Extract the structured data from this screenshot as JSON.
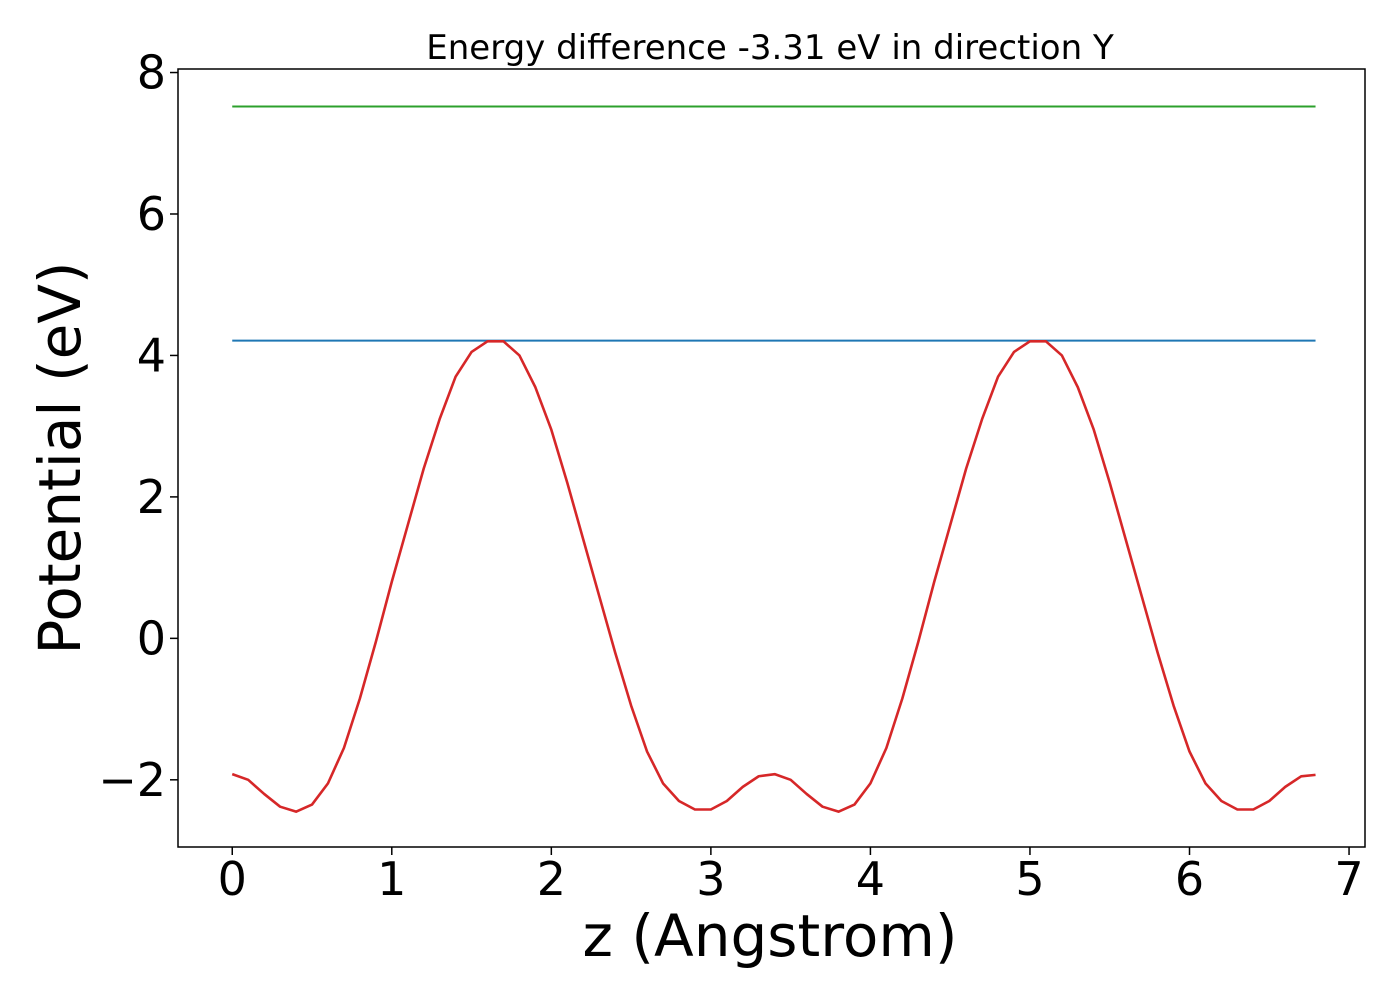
{
  "chart_data": {
    "type": "line",
    "title": "Energy difference -3.31 eV in direction Y",
    "xlabel": "z (Angstrom)",
    "ylabel": "Potential (eV)",
    "xlim": [
      -0.34,
      7.1
    ],
    "ylim": [
      -2.95,
      8.05
    ],
    "xticks": [
      0,
      1,
      2,
      3,
      4,
      5,
      6,
      7
    ],
    "xtick_labels": [
      "0",
      "1",
      "2",
      "3",
      "4",
      "5",
      "6",
      "7"
    ],
    "yticks": [
      -2,
      0,
      2,
      4,
      6,
      8
    ],
    "ytick_labels": [
      "−2",
      "0",
      "2",
      "4",
      "6",
      "8"
    ],
    "grid": false,
    "legend": "none",
    "series": [
      {
        "color": "#2ca02c",
        "x": [
          0,
          6.79
        ],
        "y": [
          7.52,
          7.52
        ]
      },
      {
        "color": "#1f77b4",
        "x": [
          0,
          6.79
        ],
        "y": [
          4.21,
          4.21
        ]
      },
      {
        "color": "#d62728",
        "x": [
          0,
          0.1,
          0.2,
          0.3,
          0.4,
          0.5,
          0.6,
          0.7,
          0.8,
          0.9,
          1.0,
          1.1,
          1.2,
          1.3,
          1.4,
          1.5,
          1.6,
          1.7,
          1.8,
          1.9,
          2.0,
          2.1,
          2.2,
          2.3,
          2.4,
          2.5,
          2.6,
          2.7,
          2.8,
          2.9,
          3.0,
          3.1,
          3.2,
          3.3,
          3.4,
          3.5,
          3.6,
          3.7,
          3.8,
          3.9,
          4.0,
          4.1,
          4.2,
          4.3,
          4.4,
          4.5,
          4.6,
          4.7,
          4.8,
          4.9,
          5.0,
          5.1,
          5.2,
          5.3,
          5.4,
          5.5,
          5.6,
          5.7,
          5.8,
          5.9,
          6.0,
          6.1,
          6.2,
          6.3,
          6.4,
          6.5,
          6.6,
          6.7,
          6.79
        ],
        "y": [
          -1.92,
          -2.0,
          -2.2,
          -2.38,
          -2.45,
          -2.35,
          -2.05,
          -1.55,
          -0.85,
          -0.05,
          0.8,
          1.6,
          2.4,
          3.1,
          3.7,
          4.05,
          4.2,
          4.2,
          4.0,
          3.55,
          2.95,
          2.2,
          1.4,
          0.6,
          -0.2,
          -0.95,
          -1.6,
          -2.05,
          -2.3,
          -2.42,
          -2.42,
          -2.3,
          -2.1,
          -1.95,
          -1.92,
          -2.0,
          -2.2,
          -2.38,
          -2.45,
          -2.35,
          -2.05,
          -1.55,
          -0.85,
          -0.05,
          0.8,
          1.6,
          2.4,
          3.1,
          3.7,
          4.05,
          4.2,
          4.2,
          4.0,
          3.55,
          2.95,
          2.2,
          1.4,
          0.6,
          -0.2,
          -0.95,
          -1.6,
          -2.05,
          -2.3,
          -2.42,
          -2.42,
          -2.3,
          -2.1,
          -1.95,
          -1.93
        ]
      }
    ]
  }
}
